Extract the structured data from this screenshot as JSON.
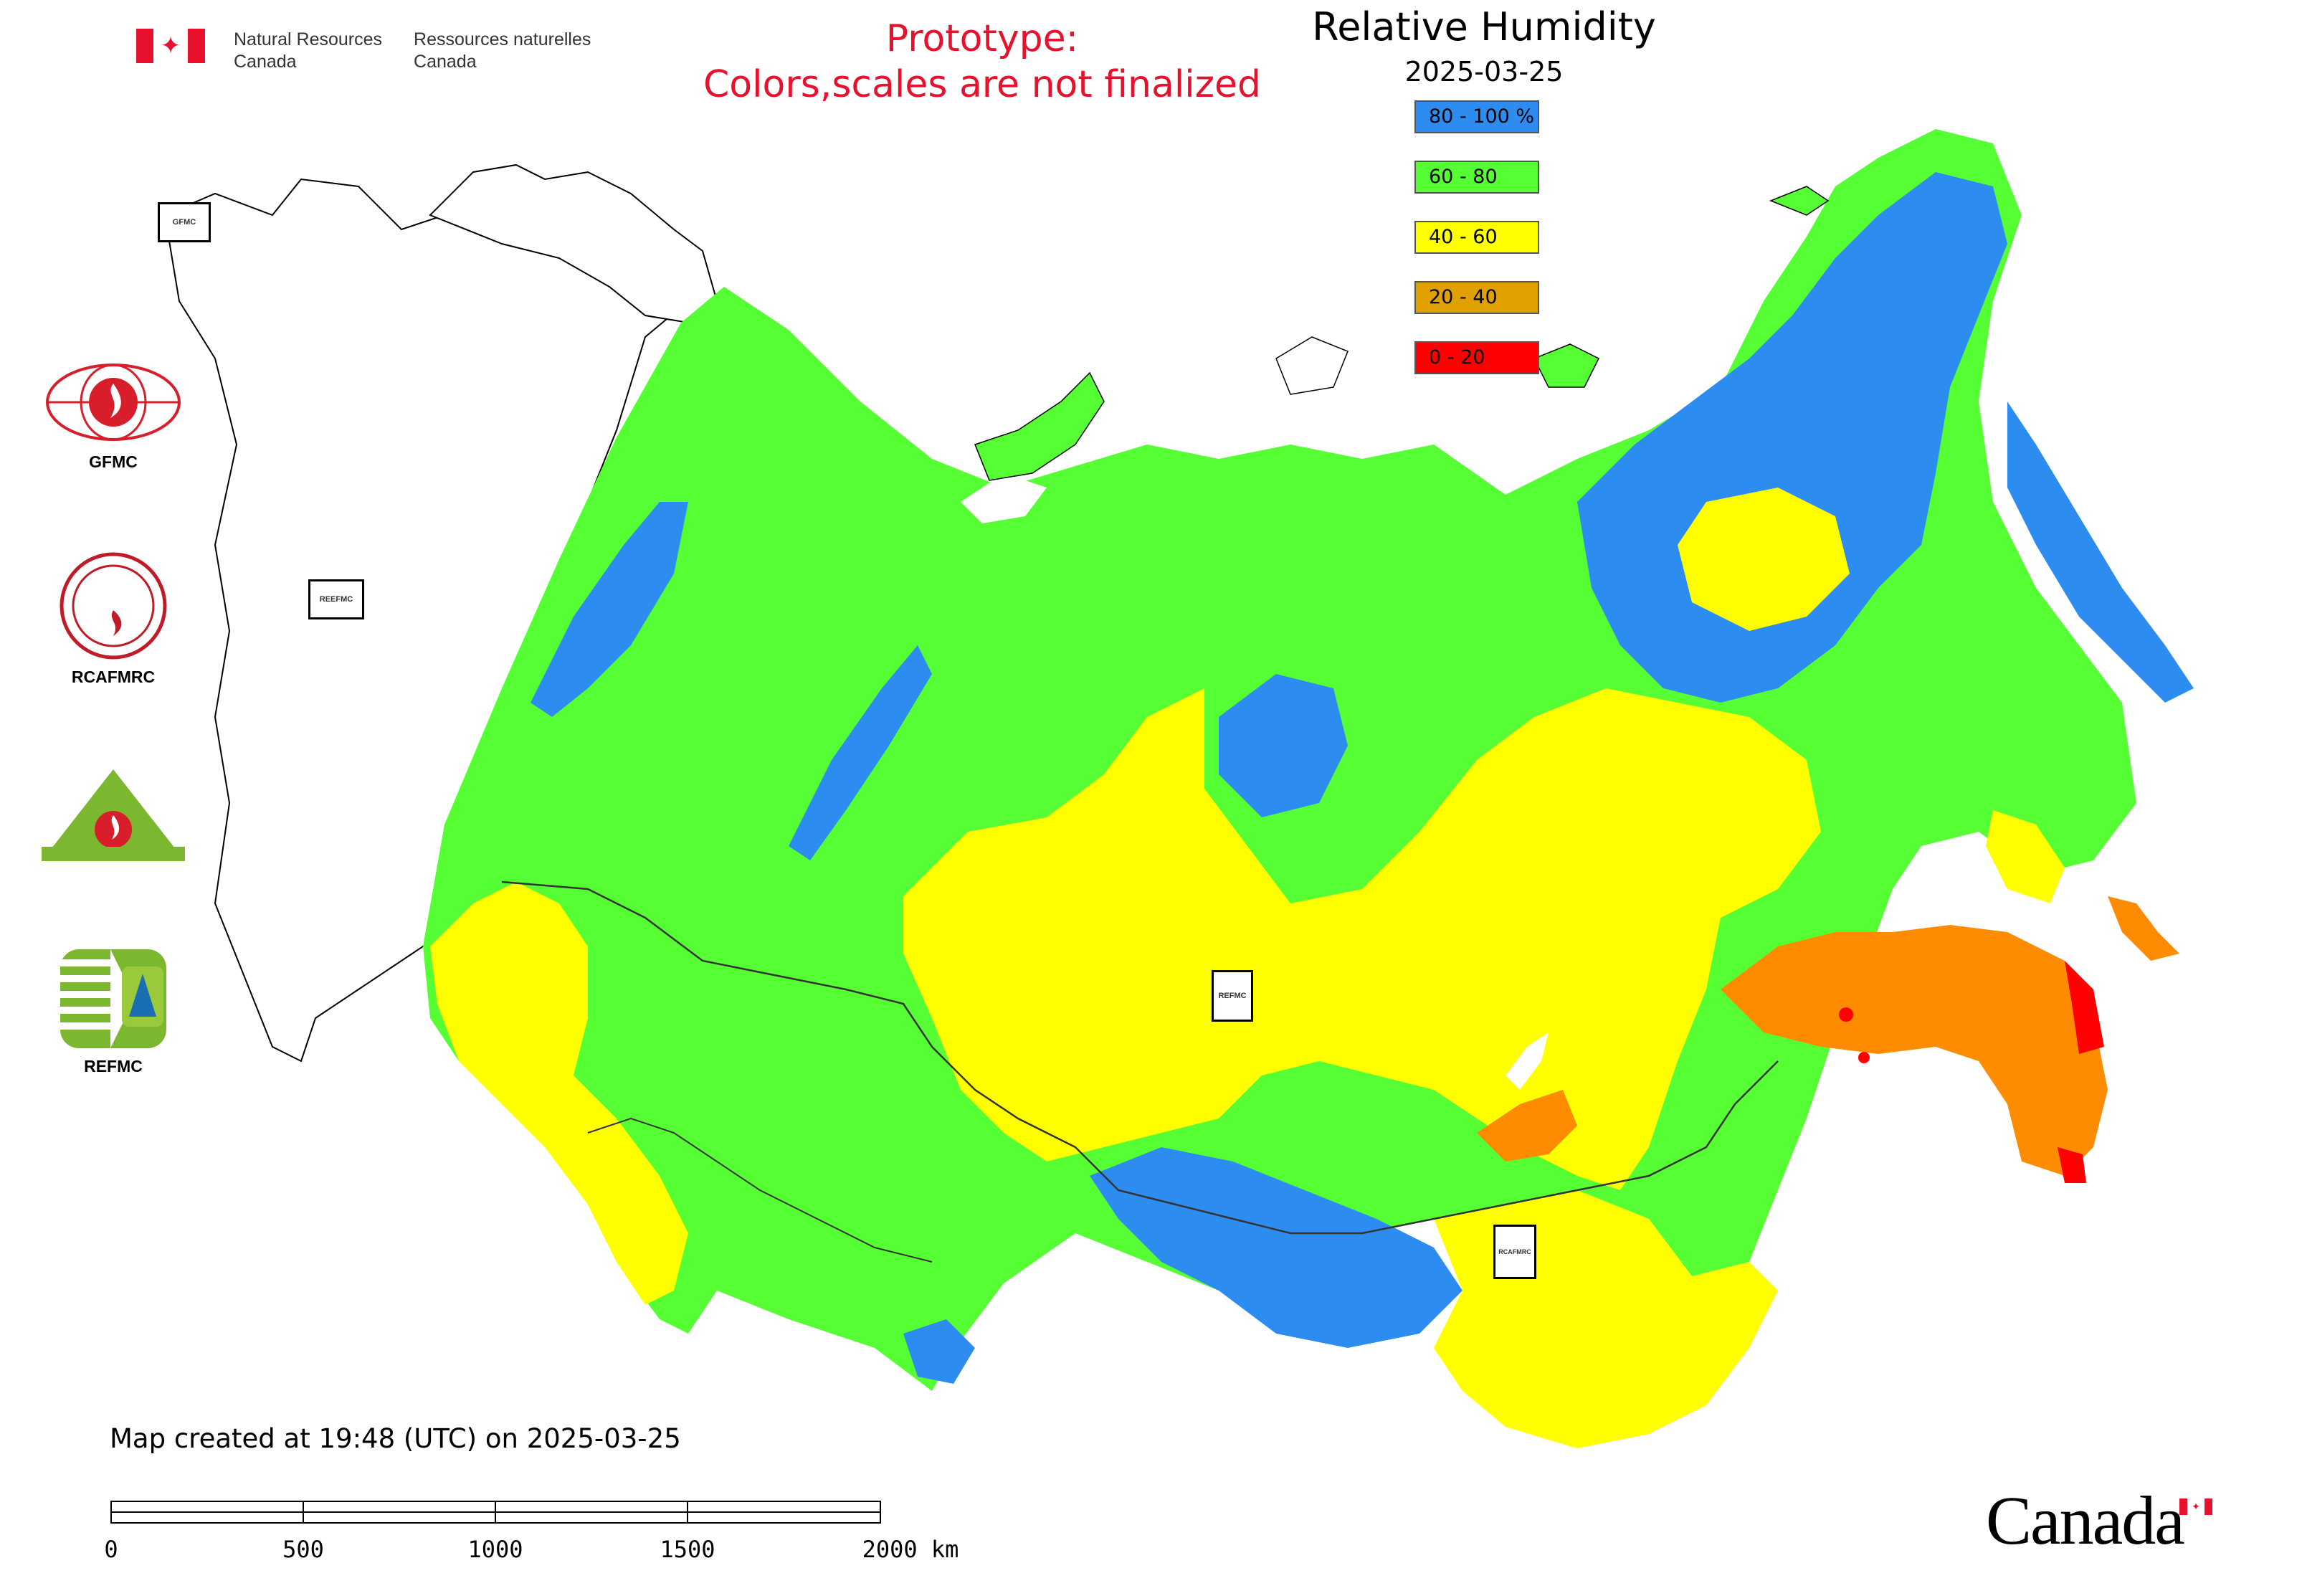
{
  "header": {
    "agency_en_line1": "Natural Resources",
    "agency_en_line2": "Canada",
    "agency_fr_line1": "Ressources naturelles",
    "agency_fr_line2": "Canada",
    "prototype_line1": "Prototype:",
    "prototype_line2": "Colors,scales are not finalized"
  },
  "legend": {
    "title": "Relative Humidity",
    "date": "2025-03-25",
    "classes": [
      {
        "label": "80 - 100 %",
        "color": "#2d8cf0"
      },
      {
        "label": "60 - 80",
        "color": "#55ff33"
      },
      {
        "label": "40 - 60",
        "color": "#ffff00"
      },
      {
        "label": "20 - 40",
        "color": "#e0a000"
      },
      {
        "label": "0 - 20",
        "color": "#ff0000"
      }
    ]
  },
  "organizations": [
    {
      "name": "GFMC",
      "icon": "gfmc-logo"
    },
    {
      "name": "RCAFMRC",
      "icon": "rcafmrc-logo"
    },
    {
      "name": "REEFMC",
      "icon": "reefmc-logo"
    },
    {
      "name": "REFMC",
      "icon": "refmc-logo"
    }
  ],
  "map_markers": [
    {
      "name": "GFMC"
    },
    {
      "name": "REEFMC"
    },
    {
      "name": "REFMC"
    },
    {
      "name": "RCAFMRC"
    }
  ],
  "footer": {
    "created": "Map created at 19:48 (UTC) on 2025-03-25",
    "scale_labels": [
      "0",
      "500",
      "1000",
      "1500",
      "2000 km"
    ],
    "wordmark": "Canada"
  }
}
